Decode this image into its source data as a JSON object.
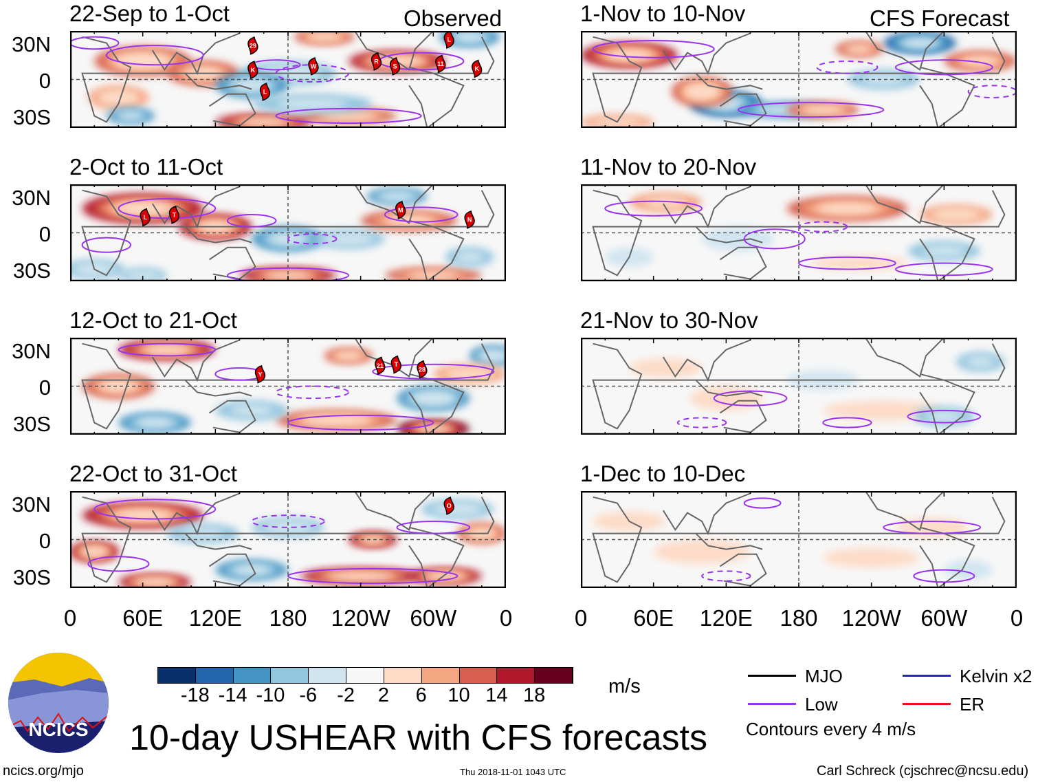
{
  "figure_title": "10-day USHEAR with CFS forecasts",
  "left_header": "Observed",
  "right_header": "CFS Forecast",
  "units": "m/s",
  "footer": {
    "left": "ncics.org/mjo",
    "center": "Thu 2018-11-01 1043 UTC",
    "right": "Carl Schreck (cjschrec@ncsu.edu)"
  },
  "logo_text": "NCICS",
  "lat_ticks": [
    "30N",
    "0",
    "30S"
  ],
  "lon_ticks": [
    "0",
    "60E",
    "120E",
    "180",
    "120W",
    "60W",
    "0"
  ],
  "colorbar": {
    "labels": [
      "-18",
      "-14",
      "-10",
      "-6",
      "-2",
      "2",
      "6",
      "10",
      "14",
      "18"
    ],
    "colors": [
      "#08306b",
      "#2166ac",
      "#4393c3",
      "#92c5de",
      "#d1e5f0",
      "#f7f7f7",
      "#fddbc7",
      "#f4a582",
      "#d6604d",
      "#b2182b",
      "#67001f"
    ]
  },
  "legend": {
    "items": [
      {
        "label": "MJO",
        "color": "#000000"
      },
      {
        "label": "Kelvin x2",
        "color": "#2222dd"
      },
      {
        "label": "Low",
        "color": "#9933ee"
      },
      {
        "label": "ER",
        "color": "#ee1111"
      }
    ],
    "note": "Contours every 4 m/s"
  },
  "chart_data": [
    {
      "type": "heatmap",
      "title": "22-Sep to 1-Oct",
      "source": "Observed",
      "blobs": [
        [
          60,
          15,
          40,
          12,
          12
        ],
        [
          110,
          5,
          30,
          10,
          10
        ],
        [
          40,
          -15,
          25,
          10,
          8
        ],
        [
          160,
          -35,
          40,
          6,
          14
        ],
        [
          230,
          -30,
          40,
          6,
          12
        ],
        [
          270,
          15,
          40,
          8,
          16
        ],
        [
          180,
          5,
          40,
          10,
          -8
        ],
        [
          150,
          -5,
          30,
          10,
          -10
        ],
        [
          330,
          35,
          25,
          8,
          -10
        ],
        [
          200,
          -20,
          50,
          8,
          -6
        ],
        [
          50,
          -30,
          20,
          6,
          -10
        ],
        [
          210,
          35,
          25,
          6,
          12
        ]
      ],
      "contours": [
        [
          70,
          20,
          40,
          8,
          0
        ],
        [
          170,
          12,
          20,
          4,
          0
        ],
        [
          290,
          15,
          35,
          7,
          0
        ],
        [
          200,
          5,
          30,
          7,
          1
        ],
        [
          230,
          -30,
          60,
          6,
          0
        ],
        [
          20,
          30,
          20,
          5,
          0
        ]
      ],
      "storms": [
        [
          "29",
          151,
          28
        ],
        [
          "K",
          151,
          8
        ],
        [
          "L",
          161,
          -10
        ],
        [
          "W",
          201,
          11
        ],
        [
          "R",
          253,
          15
        ],
        [
          "S",
          257,
          11
        ],
        [
          "11",
          306,
          13
        ],
        [
          "L",
          313,
          33
        ],
        [
          "K",
          336,
          9
        ]
      ]
    },
    {
      "type": "heatmap",
      "title": "2-Oct to 11-Oct",
      "source": "Observed",
      "blobs": [
        [
          60,
          20,
          50,
          12,
          14
        ],
        [
          120,
          5,
          30,
          10,
          14
        ],
        [
          180,
          -5,
          30,
          10,
          -10
        ],
        [
          230,
          -5,
          30,
          8,
          -8
        ],
        [
          180,
          -35,
          40,
          6,
          14
        ],
        [
          300,
          -35,
          40,
          6,
          10
        ],
        [
          280,
          10,
          40,
          8,
          10
        ],
        [
          270,
          30,
          25,
          6,
          -12
        ],
        [
          20,
          -30,
          25,
          8,
          -8
        ],
        [
          330,
          -20,
          20,
          8,
          -6
        ],
        [
          60,
          -35,
          20,
          6,
          -8
        ]
      ],
      "contours": [
        [
          80,
          20,
          40,
          8,
          0
        ],
        [
          150,
          10,
          20,
          5,
          0
        ],
        [
          180,
          -35,
          50,
          6,
          0
        ],
        [
          290,
          15,
          30,
          6,
          0
        ],
        [
          200,
          -5,
          20,
          4,
          1
        ],
        [
          30,
          -10,
          20,
          6,
          0
        ]
      ],
      "storms": [
        [
          "L",
          62,
          13
        ],
        [
          "T",
          86,
          15
        ],
        [
          "M",
          273,
          19
        ],
        [
          "N",
          330,
          11
        ]
      ]
    },
    {
      "type": "heatmap",
      "title": "12-Oct to 21-Oct",
      "source": "Observed",
      "blobs": [
        [
          80,
          30,
          40,
          8,
          14
        ],
        [
          40,
          0,
          30,
          10,
          10
        ],
        [
          70,
          -30,
          30,
          8,
          -10
        ],
        [
          220,
          -28,
          50,
          8,
          12
        ],
        [
          300,
          -35,
          30,
          6,
          18
        ],
        [
          230,
          25,
          20,
          6,
          12
        ],
        [
          300,
          -10,
          30,
          10,
          -12
        ],
        [
          350,
          25,
          20,
          8,
          -12
        ],
        [
          150,
          -20,
          30,
          8,
          -6
        ],
        [
          330,
          10,
          30,
          8,
          8
        ]
      ],
      "contours": [
        [
          80,
          30,
          40,
          5,
          0
        ],
        [
          240,
          -30,
          60,
          6,
          0
        ],
        [
          300,
          12,
          50,
          6,
          0
        ],
        [
          200,
          -5,
          30,
          5,
          1
        ],
        [
          140,
          10,
          20,
          5,
          0
        ]
      ],
      "storms": [
        [
          "Y",
          157,
          10
        ],
        [
          "21",
          256,
          17
        ],
        [
          "T",
          258,
          18
        ],
        [
          "28",
          268,
          14
        ]
      ]
    },
    {
      "type": "heatmap",
      "title": "22-Oct to 31-Oct",
      "source": "Observed",
      "blobs": [
        [
          60,
          20,
          50,
          10,
          14
        ],
        [
          20,
          -10,
          20,
          8,
          16
        ],
        [
          70,
          -35,
          30,
          6,
          16
        ],
        [
          150,
          -25,
          30,
          8,
          -10
        ],
        [
          240,
          -30,
          50,
          6,
          16
        ],
        [
          310,
          -30,
          30,
          6,
          16
        ],
        [
          250,
          0,
          20,
          6,
          14
        ],
        [
          180,
          10,
          30,
          8,
          -8
        ],
        [
          320,
          25,
          30,
          8,
          -8
        ],
        [
          110,
          5,
          30,
          8,
          -6
        ],
        [
          340,
          5,
          20,
          8,
          12
        ]
      ],
      "contours": [
        [
          70,
          25,
          50,
          8,
          0
        ],
        [
          250,
          -30,
          70,
          6,
          0
        ],
        [
          300,
          10,
          30,
          5,
          0
        ],
        [
          180,
          15,
          30,
          5,
          1
        ],
        [
          40,
          -20,
          25,
          6,
          0
        ]
      ],
      "storms": [
        [
          "O",
          313,
          28
        ]
      ]
    },
    {
      "type": "heatmap",
      "title": "1-Nov to 10-Nov",
      "source": "CFS Forecast",
      "blobs": [
        [
          40,
          20,
          40,
          10,
          14
        ],
        [
          120,
          -20,
          30,
          10,
          -14
        ],
        [
          100,
          -10,
          25,
          12,
          12
        ],
        [
          170,
          -25,
          40,
          6,
          -12
        ],
        [
          200,
          -25,
          30,
          6,
          12
        ],
        [
          280,
          30,
          30,
          8,
          -14
        ],
        [
          330,
          15,
          30,
          8,
          10
        ],
        [
          230,
          25,
          20,
          6,
          10
        ],
        [
          30,
          -35,
          30,
          6,
          8
        ],
        [
          250,
          0,
          30,
          8,
          -6
        ]
      ],
      "contours": [
        [
          60,
          25,
          50,
          7,
          0
        ],
        [
          190,
          -25,
          60,
          6,
          0
        ],
        [
          300,
          10,
          40,
          6,
          0
        ],
        [
          220,
          10,
          25,
          5,
          1
        ],
        [
          340,
          -10,
          20,
          5,
          1
        ]
      ],
      "storms": []
    },
    {
      "type": "heatmap",
      "title": "11-Nov to 20-Nov",
      "source": "CFS Forecast",
      "blobs": [
        [
          220,
          20,
          50,
          10,
          10
        ],
        [
          310,
          15,
          30,
          8,
          8
        ],
        [
          70,
          25,
          30,
          8,
          6
        ],
        [
          130,
          -5,
          30,
          10,
          -4
        ],
        [
          230,
          -25,
          40,
          6,
          4
        ],
        [
          300,
          -15,
          30,
          8,
          -6
        ],
        [
          40,
          -20,
          20,
          8,
          -4
        ]
      ],
      "contours": [
        [
          60,
          20,
          40,
          6,
          0
        ],
        [
          160,
          -5,
          25,
          8,
          0
        ],
        [
          300,
          -30,
          40,
          5,
          0
        ],
        [
          220,
          -25,
          40,
          5,
          0
        ],
        [
          200,
          5,
          20,
          4,
          1
        ]
      ],
      "storms": []
    },
    {
      "type": "heatmap",
      "title": "21-Nov to 30-Nov",
      "source": "CFS Forecast",
      "blobs": [
        [
          120,
          -10,
          30,
          10,
          4
        ],
        [
          250,
          -20,
          50,
          8,
          4
        ],
        [
          300,
          -25,
          25,
          8,
          -6
        ],
        [
          200,
          5,
          30,
          8,
          -4
        ],
        [
          330,
          20,
          20,
          8,
          -6
        ],
        [
          70,
          15,
          30,
          8,
          4
        ]
      ],
      "contours": [
        [
          140,
          -10,
          30,
          6,
          0
        ],
        [
          300,
          -25,
          30,
          5,
          0
        ],
        [
          100,
          -30,
          20,
          4,
          1
        ],
        [
          220,
          -30,
          20,
          4,
          0
        ]
      ],
      "storms": []
    },
    {
      "type": "heatmap",
      "title": "1-Dec to 10-Dec",
      "source": "CFS Forecast",
      "blobs": [
        [
          100,
          -10,
          40,
          10,
          3
        ],
        [
          240,
          -15,
          40,
          8,
          3
        ],
        [
          290,
          10,
          30,
          8,
          5
        ],
        [
          320,
          -25,
          20,
          8,
          -3
        ],
        [
          40,
          15,
          30,
          8,
          3
        ]
      ],
      "contours": [
        [
          150,
          30,
          15,
          4,
          0
        ],
        [
          290,
          10,
          40,
          5,
          0
        ],
        [
          300,
          -30,
          25,
          5,
          0
        ],
        [
          120,
          -30,
          20,
          4,
          1
        ]
      ],
      "storms": []
    }
  ]
}
